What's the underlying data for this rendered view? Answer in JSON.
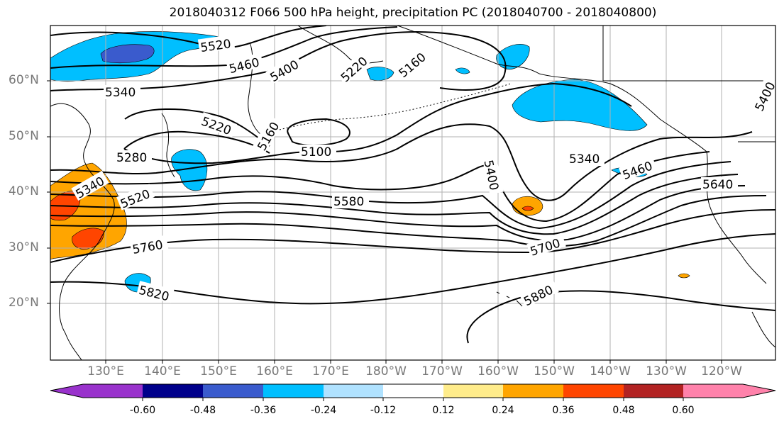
{
  "title": "2018040312 F066 500 hPa height, precipitation PC (2018040700 - 2018040800)",
  "lat_labels": [
    "60°N",
    "50°N",
    "40°N",
    "30°N",
    "20°N"
  ],
  "lon_labels": [
    "130°E",
    "140°E",
    "150°E",
    "160°E",
    "170°E",
    "180°W",
    "170°W",
    "160°W",
    "150°W",
    "140°W",
    "130°W",
    "120°W"
  ],
  "contour_labels": [
    "5520",
    "5460",
    "5400",
    "5220",
    "5160",
    "5340",
    "5220",
    "5160",
    "5100",
    "5280",
    "5340",
    "5520",
    "5580",
    "5400",
    "5340",
    "5460",
    "5640",
    "5760",
    "5700",
    "5820",
    "5880",
    "5400"
  ],
  "colorbar": {
    "colors": [
      "#9932cc",
      "#00008b",
      "#3a5bcd",
      "#00bfff",
      "#b0e2ff",
      "#ffffff",
      "#ffec8b",
      "#ffa500",
      "#ff4500",
      "#b22222",
      "#ff82ab"
    ],
    "tick_labels": [
      "-0.60",
      "-0.48",
      "-0.36",
      "-0.24",
      "-0.12",
      "0.12",
      "0.24",
      "0.36",
      "0.48",
      "0.60"
    ]
  },
  "colors": {
    "contour": "#000000",
    "coast": "#000000",
    "grid": "#b0b0b0",
    "axis_text": "#777777"
  }
}
